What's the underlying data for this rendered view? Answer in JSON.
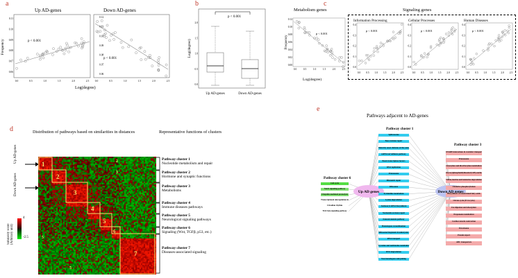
{
  "panels": {
    "a": "a",
    "b": "b",
    "c": "c",
    "d": "d",
    "e": "e"
  },
  "panel_a": {
    "left": {
      "title": "Up AD-genes",
      "pvalue": "p < 0.001",
      "yticks": [
        "0.06",
        "0.07",
        "0.08",
        "0.09",
        "0.10",
        "0.11"
      ],
      "xticks": [
        "0.0",
        "0.5",
        "1.0",
        "1.5",
        "2.0",
        "2.5"
      ]
    },
    "right": {
      "title": "Down AD-genes",
      "pvalue": "p < 0.001",
      "yticks": [
        "0.06",
        "0.07",
        "0.08",
        "0.09",
        "0.10",
        "0.11",
        "0.12"
      ],
      "xticks": [
        "0.0",
        "0.5",
        "1.0",
        "1.5",
        "2.0",
        "2.5"
      ]
    },
    "ylabel": "Frequency",
    "xlabel": "Log(degree)"
  },
  "panel_b": {
    "ylabel": "Log(degree)",
    "pvalue": "p < 0.001",
    "yticks": [
      "0.0",
      "0.5",
      "1.0",
      "1.5",
      "2.0"
    ],
    "categories": [
      "Up AD-genes",
      "Down AD-genes"
    ]
  },
  "panel_c": {
    "metabolism_title": "Metabolism genes",
    "signaling_title": "Signaling genes",
    "subtitles": [
      "Information Processing",
      "Cellular Processes",
      "Human Diseases"
    ],
    "pvalue": "p < 0.001",
    "ylabel": "Frequency",
    "xlabel": "Log(degree)",
    "xticks": [
      "0.0",
      "0.5",
      "1.0",
      "1.5",
      "2.0",
      "2.5"
    ],
    "yticks_meta": [
      "0.00",
      "0.02",
      "0.04",
      "0.06",
      "0.08",
      "0.10",
      "0.12"
    ],
    "yticks_sig": [
      "0.0",
      "0.1",
      "0.2",
      "0.3",
      "0.4"
    ]
  },
  "panel_d": {
    "heading_left": "Distribution of pathways based on similarities in distances",
    "heading_right": "Representative functions of clusters",
    "side_up": "Up AD-genes",
    "side_down": "Down AD-genes",
    "block_numbers": [
      "1",
      "2",
      "3",
      "4",
      "5",
      "6",
      "7"
    ],
    "legend_title": "Similarity score\n(Arbitrary unit)",
    "legend_max": "4",
    "legend_min": "-2.5",
    "clusters": [
      {
        "name": "Pathway cluster 1",
        "desc": "Nucleotide metabolism and repair"
      },
      {
        "name": "Pathway cluster 2",
        "desc": "Hormone and synaptic functions"
      },
      {
        "name": "Pathway cluster 3",
        "desc": "Metabolisms"
      },
      {
        "name": "Pathway cluster 4",
        "desc": "Immune diseases pathways"
      },
      {
        "name": "Pathway cluster 5",
        "desc": "Neurological signaling pathways"
      },
      {
        "name": "Pathway cluster 6",
        "desc": "Signaling (Wnt, TGFβ, p53, etc.)"
      },
      {
        "name": "Pathway cluster 7",
        "desc": "Diseases-associated signaling"
      }
    ]
  },
  "panel_e": {
    "title": "Pathways adjacent to AD-genes",
    "hub_up": "Up AD genes",
    "hub_down": "Down AD genes",
    "cluster1": {
      "title": "Pathway cluster 1",
      "items": [
        "Spliceosome",
        "Base excision repair",
        "Maturity onset diabetes of the young",
        "mRNA surveillance pathway",
        "Basal transcription factors",
        "DNA replication",
        "Proteasome",
        "Mismatch repair",
        "Ribosome",
        "Pyrimidine metabolism",
        "Lysine degradation",
        "Aminoacyl-tRNA biosynthesis",
        "Nucleotide excision repair",
        "Fanconi anemia pathway",
        "Homologous recombination",
        "Ribosome biogenesis in eukaryotes",
        "RNA transport",
        "Cysteine and methionine metabolism",
        "RNA degradation",
        "Non-homologous end-joining"
      ]
    },
    "cluster6": {
      "title": "Pathway cluster 6",
      "items": [
        "Cell cycle",
        "Notch signaling pathway",
        "Ubiquitin mediated proteolysis",
        "Transcriptional misregulation in cancer",
        "Circadian rhythm",
        "TGF-beta signaling pathway"
      ]
    },
    "cluster3": {
      "title": "Pathway cluster 3",
      "items": [
        "SNARE interactions in vesicular transport",
        "Proteasome",
        "Glyoxylate and dicarboxylate metabolism",
        "Glycosylphosphatidylinositol (GPI)-anchor biosynthesis",
        "Valine, leucine and isoleucine degradation",
        "Oxidative phosphorylation",
        "Biosynthesis of unsaturated fatty acids",
        "Citrate cycle (TCA cycle)",
        "Fat digestion and absorption",
        "Propanoate metabolism",
        "Cardiac muscle contraction",
        "Peroxisome",
        "Protein export",
        "ABC transporters"
      ]
    },
    "colors": {
      "cluster1": "#33ccee",
      "cluster6": "#55dd44",
      "cluster3": "#f4aaaa",
      "hub_up": "#f0b8ee",
      "hub_down": "#bcc4f2"
    }
  }
}
